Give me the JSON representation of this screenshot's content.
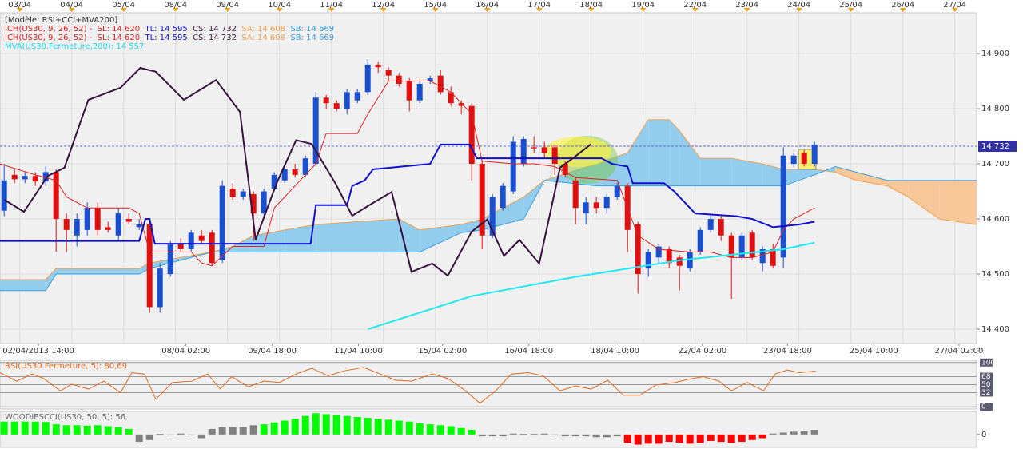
{
  "chart_data": [
    {
      "type": "candlestick",
      "legend": [
        [
          {
            "text": "[Modèle: RSI+CCI+MVA200]",
            "color": "#333333"
          }
        ],
        [
          {
            "text": "ICH(US30, 9, 26, 52) -  SL: 14 620",
            "color": "#e02020"
          },
          {
            "text": "  TL: 14 595",
            "color": "#1010cc"
          },
          {
            "text": "  CS: 14 732",
            "color": "#3a1a3a"
          },
          {
            "text": "  SA: 14 608",
            "color": "#f0a050"
          },
          {
            "text": "  SB: 14 669",
            "color": "#3aa0e0"
          }
        ],
        [
          {
            "text": "ICH(US30, 9, 26, 52) -  SL: 14 620",
            "color": "#e02020"
          },
          {
            "text": "  TL: 14 595",
            "color": "#1010cc"
          },
          {
            "text": "  CS: 14 732",
            "color": "#3a1a3a"
          },
          {
            "text": "  SA: 14 608",
            "color": "#f0a050"
          },
          {
            "text": "  SB: 14 669",
            "color": "#3aa0e0"
          }
        ],
        [
          {
            "text": "MVA(US30.Fermeture,200): 14 557",
            "color": "#20d8e8"
          }
        ]
      ],
      "up_color": "#1a4fd0",
      "down_color": "#e01010",
      "open": [
        14615,
        14680,
        14672,
        14678,
        14668,
        14685,
        14600,
        14570,
        14580,
        14620,
        14585,
        14570,
        14600,
        14585,
        14590,
        14440,
        14500,
        14555,
        14545,
        14570,
        14575,
        14525,
        14655,
        14640,
        14645,
        14610,
        14655,
        14670,
        14690,
        14680,
        14700,
        14820,
        14810,
        14800,
        14815,
        14830,
        14880,
        14870,
        14860,
        14850,
        14815,
        14850,
        14860,
        14830,
        14810,
        14805,
        14700,
        14570,
        14620,
        14650,
        14700,
        14730,
        14730,
        14730,
        14700,
        14670,
        14610,
        14630,
        14620,
        14640,
        14660,
        14590,
        14510,
        14530,
        14545,
        14530,
        14510,
        14540,
        14580,
        14600,
        14570,
        14530,
        14575,
        14520,
        14545,
        14530,
        14700,
        14720,
        14700
      ],
      "high": [
        14700,
        14690,
        14685,
        14685,
        14695,
        14690,
        14610,
        14610,
        14630,
        14630,
        14595,
        14620,
        14610,
        14600,
        14600,
        14520,
        14560,
        14565,
        14580,
        14580,
        14580,
        14670,
        14665,
        14655,
        14650,
        14655,
        14685,
        14695,
        14700,
        14715,
        14830,
        14825,
        14815,
        14835,
        14835,
        14890,
        14885,
        14875,
        14865,
        14855,
        14850,
        14860,
        14870,
        14840,
        14815,
        14810,
        14705,
        14645,
        14665,
        14750,
        14750,
        14750,
        14740,
        14735,
        14705,
        14675,
        14640,
        14640,
        14645,
        14665,
        14665,
        14595,
        14545,
        14555,
        14550,
        14535,
        14545,
        14585,
        14610,
        14605,
        14575,
        14575,
        14580,
        14550,
        14555,
        14730,
        14720,
        14725,
        14740
      ],
      "low": [
        14605,
        14665,
        14665,
        14660,
        14660,
        14540,
        14540,
        14550,
        14570,
        14570,
        14575,
        14560,
        14590,
        14580,
        14430,
        14430,
        14495,
        14540,
        14540,
        14555,
        14515,
        14520,
        14635,
        14635,
        14560,
        14600,
        14650,
        14665,
        14675,
        14675,
        14695,
        14800,
        14795,
        14790,
        14810,
        14825,
        14865,
        14850,
        14840,
        14795,
        14810,
        14845,
        14825,
        14805,
        14790,
        14670,
        14545,
        14565,
        14615,
        14645,
        14695,
        14720,
        14710,
        14680,
        14675,
        14590,
        14590,
        14610,
        14610,
        14635,
        14540,
        14465,
        14495,
        14520,
        14510,
        14470,
        14505,
        14535,
        14575,
        14560,
        14455,
        14525,
        14525,
        14505,
        14510,
        14510,
        14695,
        14695,
        14695
      ],
      "close": [
        14670,
        14672,
        14678,
        14668,
        14685,
        14600,
        14580,
        14600,
        14620,
        14580,
        14580,
        14610,
        14595,
        14590,
        14440,
        14510,
        14555,
        14545,
        14575,
        14560,
        14520,
        14660,
        14640,
        14650,
        14610,
        14650,
        14680,
        14690,
        14680,
        14710,
        14820,
        14810,
        14800,
        14830,
        14830,
        14880,
        14875,
        14860,
        14845,
        14815,
        14845,
        14855,
        14830,
        14810,
        14805,
        14700,
        14570,
        14640,
        14660,
        14740,
        14745,
        14728,
        14720,
        14700,
        14680,
        14620,
        14630,
        14620,
        14640,
        14660,
        14580,
        14500,
        14540,
        14550,
        14520,
        14515,
        14540,
        14580,
        14600,
        14570,
        14530,
        14570,
        14530,
        14545,
        14515,
        14715,
        14715,
        14700,
        14735
      ],
      "cloud": {
        "x": [
          -0.4,
          4,
          5,
          13,
          14,
          20,
          22,
          24,
          27,
          30,
          38,
          40,
          44,
          46,
          50,
          52,
          57,
          60,
          62,
          64,
          65,
          67,
          70,
          73,
          75,
          78,
          80,
          82,
          85,
          87,
          90,
          93.6
        ],
        "span_a": [
          14490,
          14490,
          14510,
          14510,
          14520,
          14540,
          14550,
          14570,
          14580,
          14590,
          14600,
          14580,
          14590,
          14600,
          14640,
          14670,
          14700,
          14720,
          14780,
          14780,
          14760,
          14710,
          14710,
          14700,
          14690,
          14690,
          14685,
          14670,
          14660,
          14640,
          14600,
          14590
        ],
        "span_b": [
          14470,
          14470,
          14500,
          14500,
          14510,
          14540,
          14540,
          14540,
          14540,
          14540,
          14540,
          14540,
          14575,
          14580,
          14600,
          14670,
          14660,
          14660,
          14660,
          14660,
          14660,
          14660,
          14660,
          14660,
          14660,
          14680,
          14695,
          14685,
          14670,
          14670,
          14670,
          14670
        ],
        "a_color": "#f0a050",
        "b_color": "#3aa0e0",
        "up_fill": "#93cdee",
        "down_fill": "#f8c79a"
      },
      "lines": [
        {
          "color": "#e02020",
          "width": 1,
          "x": [
            -0.4,
            3,
            5,
            6,
            8,
            12,
            13,
            14,
            18,
            19,
            20,
            22,
            25,
            26,
            30,
            31,
            34,
            35,
            37,
            41,
            43,
            45,
            46,
            49,
            51,
            53,
            55,
            59,
            60,
            61,
            63,
            66,
            68,
            70,
            72,
            74,
            75,
            76,
            78
          ],
          "values": [
            14700,
            14680,
            14670,
            14640,
            14620,
            14620,
            14610,
            14540,
            14540,
            14520,
            14515,
            14550,
            14550,
            14620,
            14700,
            14755,
            14755,
            14790,
            14850,
            14850,
            14830,
            14790,
            14705,
            14700,
            14700,
            14695,
            14675,
            14670,
            14620,
            14570,
            14545,
            14540,
            14540,
            14530,
            14530,
            14540,
            14580,
            14600,
            14620
          ]
        },
        {
          "color": "#1010cc",
          "width": 2,
          "x": [
            -0.4,
            13,
            13.6,
            14,
            14.5,
            29.5,
            30,
            33,
            33.5,
            34.7,
            35.5,
            41,
            42,
            44.8,
            45.5,
            57.5,
            58.5,
            60,
            60.5,
            63.5,
            64.5,
            66.5,
            70.5,
            72,
            74,
            76.5,
            78
          ],
          "values": [
            14560,
            14560,
            14600,
            14600,
            14555,
            14555,
            14625,
            14625,
            14660,
            14670,
            14690,
            14700,
            14735,
            14735,
            14710,
            14710,
            14700,
            14695,
            14665,
            14665,
            14650,
            14610,
            14605,
            14600,
            14585,
            14590,
            14595
          ]
        },
        {
          "color": "#3a1040",
          "width": 2,
          "x": [
            0,
            1.9,
            4.2,
            5.8,
            8.1,
            11.2,
            13.1,
            14.6,
            17.3,
            20.4,
            22.7,
            24.2,
            26.2,
            28.1,
            29.6,
            31.9,
            33.5,
            35.4,
            37.3,
            39.2,
            41.2,
            42.7,
            45,
            46.5,
            48.1,
            49.6,
            51.5,
            53.5,
            55,
            56.5
          ],
          "values": [
            14635,
            14613,
            14678,
            14693,
            14816,
            14838,
            14874,
            14867,
            14816,
            14852,
            14794,
            14562,
            14664,
            14743,
            14736,
            14664,
            14606,
            14628,
            14649,
            14504,
            14519,
            14497,
            14577,
            14599,
            14533,
            14562,
            14519,
            14693,
            14714,
            14736
          ]
        },
        {
          "color": "#20e8f0",
          "width": 2,
          "x": [
            35,
            45,
            55,
            65,
            70,
            75,
            78
          ],
          "values": [
            14400,
            14460,
            14495,
            14525,
            14535,
            14545,
            14557
          ]
        }
      ],
      "last_price": {
        "value": 14732,
        "label": "14 732"
      },
      "xlim": [
        -0.4,
        93.6
      ],
      "ylim": [
        14374,
        14974
      ],
      "yticks": [
        {
          "value": 14900,
          "label": "14 900"
        },
        {
          "value": 14800,
          "label": "14 800"
        },
        {
          "value": 14700,
          "label": "14 700"
        },
        {
          "value": 14600,
          "label": "14 600"
        },
        {
          "value": 14500,
          "label": "14 500"
        },
        {
          "value": 14400,
          "label": "14 400"
        }
      ],
      "date_ticks": [
        {
          "value": 1.5,
          "label": "03/04"
        },
        {
          "value": 6.5,
          "label": "04/04"
        },
        {
          "value": 11.5,
          "label": "05/04"
        },
        {
          "value": 16.5,
          "label": "08/04"
        },
        {
          "value": 21.5,
          "label": "09/04"
        },
        {
          "value": 26.5,
          "label": "10/04"
        },
        {
          "value": 31.5,
          "label": "11/04"
        },
        {
          "value": 36.5,
          "label": "12/04"
        },
        {
          "value": 41.5,
          "label": "15/04"
        },
        {
          "value": 46.5,
          "label": "16/04"
        },
        {
          "value": 51.5,
          "label": "17/04"
        },
        {
          "value": 56.5,
          "label": "18/04"
        },
        {
          "value": 61.5,
          "label": "19/04"
        },
        {
          "value": 66.5,
          "label": "22/04"
        },
        {
          "value": 71.5,
          "label": "23/04"
        },
        {
          "value": 76.5,
          "label": "24/04"
        },
        {
          "value": 81.5,
          "label": "25/04"
        },
        {
          "value": 86.5,
          "label": "26/04"
        },
        {
          "value": 91.5,
          "label": "27/04"
        }
      ],
      "xticks": [
        {
          "value": 3.3,
          "label": "02/04/2013 14:00"
        },
        {
          "value": 17.5,
          "label": "08/04 02:00"
        },
        {
          "value": 25.8,
          "label": "09/04 18:00"
        },
        {
          "value": 34.1,
          "label": "11/04 10:00"
        },
        {
          "value": 42.2,
          "label": "15/04 02:00"
        },
        {
          "value": 50.5,
          "label": "16/04 18:00"
        },
        {
          "value": 58.8,
          "label": "18/04 10:00"
        },
        {
          "value": 67.2,
          "label": "22/04 02:00"
        },
        {
          "value": 75.4,
          "label": "23/04 18:00"
        },
        {
          "value": 83.7,
          "label": "25/04 10:00"
        },
        {
          "value": 91.9,
          "label": "27/04 02:00"
        }
      ],
      "grid": true
    },
    {
      "type": "line",
      "title": "RSI(US30.Fermeture, 5): 80,69",
      "color": "#e06a20",
      "x": [
        -0.4,
        1.2,
        2.7,
        3.8,
        5.4,
        6.5,
        8.1,
        9.6,
        11.2,
        12.3,
        13.5,
        14.6,
        16.2,
        18.1,
        19.6,
        20.8,
        21.9,
        23.5,
        25,
        26.5,
        28.1,
        29.6,
        31.2,
        32.7,
        34.6,
        36.2,
        37.7,
        39.2,
        41.2,
        42.7,
        44.2,
        45.8,
        47.3,
        48.8,
        50.4,
        51.9,
        53.5,
        55,
        56.5,
        58.1,
        59.6,
        61.2,
        62.7,
        64.6,
        65.8,
        67.3,
        68.8,
        70,
        71.5,
        73.1,
        74.2,
        75.4,
        76.5,
        78.1
      ],
      "values": [
        77,
        58,
        74,
        64,
        36,
        51,
        40,
        58,
        32,
        77,
        74,
        17,
        55,
        58,
        74,
        40,
        68,
        45,
        58,
        55,
        74,
        87,
        70,
        81,
        89,
        74,
        60,
        58,
        74,
        64,
        40,
        8,
        36,
        74,
        77,
        70,
        36,
        47,
        40,
        60,
        26,
        26,
        49,
        55,
        62,
        68,
        58,
        36,
        55,
        36,
        74,
        83,
        77,
        80.69
      ],
      "xlim": [
        -0.4,
        93.6
      ],
      "ylim": [
        -5,
        105
      ],
      "yticks": [
        100,
        68,
        50,
        32,
        0
      ]
    },
    {
      "type": "bar",
      "title": "WOODIESCCI(US30, 50, 5): 56",
      "values": [
        140,
        140,
        140,
        140,
        135,
        110,
        100,
        100,
        95,
        100,
        90,
        80,
        60,
        -80,
        -60,
        5,
        0,
        10,
        -10,
        -40,
        60,
        80,
        80,
        80,
        100,
        110,
        130,
        150,
        170,
        200,
        230,
        220,
        210,
        200,
        190,
        180,
        170,
        160,
        150,
        140,
        120,
        110,
        100,
        90,
        70,
        50,
        -20,
        -20,
        -20,
        10,
        5,
        5,
        10,
        0,
        -20,
        -20,
        -20,
        -30,
        -30,
        -20,
        -90,
        -110,
        -100,
        -100,
        -80,
        -90,
        -100,
        -90,
        -70,
        -80,
        -90,
        -80,
        -60,
        -40,
        10,
        20,
        30,
        40,
        50
      ],
      "colors": [
        "lime",
        "lime",
        "lime",
        "lime",
        "lime",
        "lime",
        "lime",
        "lime",
        "lime",
        "lime",
        "lime",
        "lime",
        "lime",
        "gray",
        "gray",
        "gray",
        "gray",
        "gray",
        "gray",
        "gray",
        "gray",
        "gray",
        "gray",
        "gray",
        "gray",
        "lime",
        "lime",
        "lime",
        "lime",
        "lime",
        "lime",
        "lime",
        "lime",
        "lime",
        "lime",
        "lime",
        "lime",
        "lime",
        "lime",
        "lime",
        "lime",
        "lime",
        "lime",
        "lime",
        "lime",
        "lime",
        "gray",
        "gray",
        "gray",
        "gray",
        "gray",
        "gray",
        "gray",
        "gray",
        "gray",
        "gray",
        "gray",
        "gray",
        "gray",
        "gray",
        "red",
        "red",
        "red",
        "red",
        "red",
        "red",
        "red",
        "red",
        "red",
        "red",
        "red",
        "red",
        "red",
        "red",
        "gray",
        "gray",
        "gray",
        "gray",
        "gray"
      ],
      "xlim": [
        -0.4,
        93.6
      ],
      "ylim": [
        -140,
        250
      ],
      "yticks": [
        0
      ]
    }
  ]
}
